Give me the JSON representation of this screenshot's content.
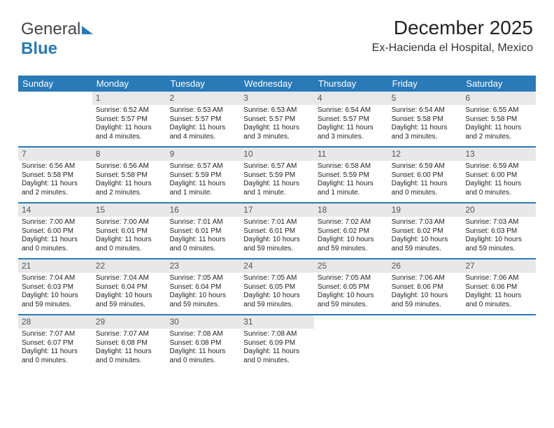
{
  "logo": {
    "part1": "General",
    "part2": "Blue"
  },
  "header": {
    "month_year": "December 2025",
    "location": "Ex-Hacienda el Hospital, Mexico"
  },
  "calendar": {
    "header_bg": "#2a7ab8",
    "header_text_color": "#ffffff",
    "daynum_bg": "#e8e8e8",
    "divider_color": "#2a7ab8",
    "text_color": "#222222",
    "body_fontsize": 10,
    "days": [
      "Sunday",
      "Monday",
      "Tuesday",
      "Wednesday",
      "Thursday",
      "Friday",
      "Saturday"
    ],
    "weeks": [
      [
        null,
        {
          "n": 1,
          "sr": "6:52 AM",
          "ss": "5:57 PM",
          "dl": "11 hours and 4 minutes."
        },
        {
          "n": 2,
          "sr": "6:53 AM",
          "ss": "5:57 PM",
          "dl": "11 hours and 4 minutes."
        },
        {
          "n": 3,
          "sr": "6:53 AM",
          "ss": "5:57 PM",
          "dl": "11 hours and 3 minutes."
        },
        {
          "n": 4,
          "sr": "6:54 AM",
          "ss": "5:57 PM",
          "dl": "11 hours and 3 minutes."
        },
        {
          "n": 5,
          "sr": "6:54 AM",
          "ss": "5:58 PM",
          "dl": "11 hours and 3 minutes."
        },
        {
          "n": 6,
          "sr": "6:55 AM",
          "ss": "5:58 PM",
          "dl": "11 hours and 2 minutes."
        }
      ],
      [
        {
          "n": 7,
          "sr": "6:56 AM",
          "ss": "5:58 PM",
          "dl": "11 hours and 2 minutes."
        },
        {
          "n": 8,
          "sr": "6:56 AM",
          "ss": "5:58 PM",
          "dl": "11 hours and 2 minutes."
        },
        {
          "n": 9,
          "sr": "6:57 AM",
          "ss": "5:59 PM",
          "dl": "11 hours and 1 minute."
        },
        {
          "n": 10,
          "sr": "6:57 AM",
          "ss": "5:59 PM",
          "dl": "11 hours and 1 minute."
        },
        {
          "n": 11,
          "sr": "6:58 AM",
          "ss": "5:59 PM",
          "dl": "11 hours and 1 minute."
        },
        {
          "n": 12,
          "sr": "6:59 AM",
          "ss": "6:00 PM",
          "dl": "11 hours and 0 minutes."
        },
        {
          "n": 13,
          "sr": "6:59 AM",
          "ss": "6:00 PM",
          "dl": "11 hours and 0 minutes."
        }
      ],
      [
        {
          "n": 14,
          "sr": "7:00 AM",
          "ss": "6:00 PM",
          "dl": "11 hours and 0 minutes."
        },
        {
          "n": 15,
          "sr": "7:00 AM",
          "ss": "6:01 PM",
          "dl": "11 hours and 0 minutes."
        },
        {
          "n": 16,
          "sr": "7:01 AM",
          "ss": "6:01 PM",
          "dl": "11 hours and 0 minutes."
        },
        {
          "n": 17,
          "sr": "7:01 AM",
          "ss": "6:01 PM",
          "dl": "10 hours and 59 minutes."
        },
        {
          "n": 18,
          "sr": "7:02 AM",
          "ss": "6:02 PM",
          "dl": "10 hours and 59 minutes."
        },
        {
          "n": 19,
          "sr": "7:03 AM",
          "ss": "6:02 PM",
          "dl": "10 hours and 59 minutes."
        },
        {
          "n": 20,
          "sr": "7:03 AM",
          "ss": "6:03 PM",
          "dl": "10 hours and 59 minutes."
        }
      ],
      [
        {
          "n": 21,
          "sr": "7:04 AM",
          "ss": "6:03 PM",
          "dl": "10 hours and 59 minutes."
        },
        {
          "n": 22,
          "sr": "7:04 AM",
          "ss": "6:04 PM",
          "dl": "10 hours and 59 minutes."
        },
        {
          "n": 23,
          "sr": "7:05 AM",
          "ss": "6:04 PM",
          "dl": "10 hours and 59 minutes."
        },
        {
          "n": 24,
          "sr": "7:05 AM",
          "ss": "6:05 PM",
          "dl": "10 hours and 59 minutes."
        },
        {
          "n": 25,
          "sr": "7:05 AM",
          "ss": "6:05 PM",
          "dl": "10 hours and 59 minutes."
        },
        {
          "n": 26,
          "sr": "7:06 AM",
          "ss": "6:06 PM",
          "dl": "10 hours and 59 minutes."
        },
        {
          "n": 27,
          "sr": "7:06 AM",
          "ss": "6:06 PM",
          "dl": "11 hours and 0 minutes."
        }
      ],
      [
        {
          "n": 28,
          "sr": "7:07 AM",
          "ss": "6:07 PM",
          "dl": "11 hours and 0 minutes."
        },
        {
          "n": 29,
          "sr": "7:07 AM",
          "ss": "6:08 PM",
          "dl": "11 hours and 0 minutes."
        },
        {
          "n": 30,
          "sr": "7:08 AM",
          "ss": "6:08 PM",
          "dl": "11 hours and 0 minutes."
        },
        {
          "n": 31,
          "sr": "7:08 AM",
          "ss": "6:09 PM",
          "dl": "11 hours and 0 minutes."
        },
        null,
        null,
        null
      ]
    ],
    "labels": {
      "sunrise": "Sunrise:",
      "sunset": "Sunset:",
      "daylight": "Daylight:"
    }
  }
}
